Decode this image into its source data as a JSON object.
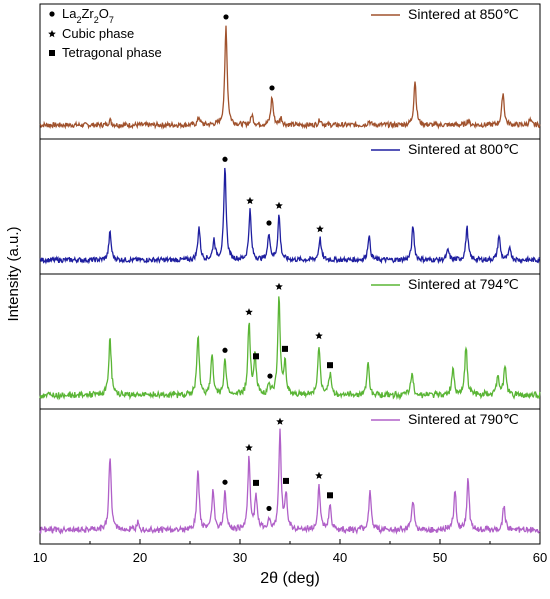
{
  "chart_data": {
    "type": "line",
    "xlabel": "2θ (deg)",
    "ylabel": "Intensity (a.u.)",
    "xlim": [
      10,
      60
    ],
    "xticks": [
      "10",
      "20",
      "30",
      "40",
      "50",
      "60"
    ],
    "legend": [
      {
        "marker": "circle",
        "label_main": "La",
        "sub1": "2",
        "mid": "Zr",
        "sub2": "2",
        "end": "O",
        "sub3": "7"
      },
      {
        "marker": "star",
        "label": "Cubic phase"
      },
      {
        "marker": "square",
        "label": "Tetragonal phase"
      }
    ],
    "series": [
      {
        "name": "Sintered at 850℃",
        "color": "#a0522d",
        "peaks": [
          [
            17.0,
            0.05
          ],
          [
            25.9,
            0.08
          ],
          [
            28.6,
            1.0
          ],
          [
            31.2,
            0.1
          ],
          [
            33.2,
            0.28
          ],
          [
            34.1,
            0.07
          ],
          [
            38.0,
            0.06
          ],
          [
            42.9,
            0.04
          ],
          [
            47.5,
            0.45
          ],
          [
            52.8,
            0.05
          ],
          [
            56.3,
            0.33
          ],
          [
            59.0,
            0.05
          ]
        ],
        "markers": [
          {
            "x": 28.6,
            "type": "circle"
          },
          {
            "x": 33.2,
            "type": "circle"
          }
        ]
      },
      {
        "name": "Sintered at 800℃",
        "color": "#1f1fa0",
        "peaks": [
          [
            17.0,
            0.28
          ],
          [
            25.9,
            0.33
          ],
          [
            27.4,
            0.2
          ],
          [
            28.5,
            0.92
          ],
          [
            31.0,
            0.5
          ],
          [
            32.9,
            0.27
          ],
          [
            33.9,
            0.45
          ],
          [
            38.0,
            0.22
          ],
          [
            42.9,
            0.25
          ],
          [
            47.3,
            0.34
          ],
          [
            50.8,
            0.1
          ],
          [
            52.7,
            0.33
          ],
          [
            55.9,
            0.25
          ],
          [
            57.0,
            0.12
          ]
        ],
        "markers": [
          {
            "x": 28.5,
            "type": "circle"
          },
          {
            "x": 31.0,
            "type": "star"
          },
          {
            "x": 32.9,
            "type": "circle"
          },
          {
            "x": 33.9,
            "type": "star"
          },
          {
            "x": 38.0,
            "type": "star"
          }
        ]
      },
      {
        "name": "Sintered at 794℃",
        "color": "#5ab535",
        "peaks": [
          [
            17.0,
            0.6
          ],
          [
            25.8,
            0.6
          ],
          [
            27.2,
            0.4
          ],
          [
            28.5,
            0.35
          ],
          [
            30.9,
            0.72
          ],
          [
            31.5,
            0.4
          ],
          [
            32.9,
            0.1
          ],
          [
            33.9,
            0.98
          ],
          [
            34.5,
            0.32
          ],
          [
            37.9,
            0.5
          ],
          [
            39.0,
            0.2
          ],
          [
            42.8,
            0.33
          ],
          [
            47.2,
            0.22
          ],
          [
            51.3,
            0.28
          ],
          [
            52.6,
            0.5
          ],
          [
            55.8,
            0.2
          ],
          [
            56.5,
            0.3
          ]
        ],
        "markers": [
          {
            "x": 28.5,
            "type": "circle"
          },
          {
            "x": 30.9,
            "type": "star"
          },
          {
            "x": 31.6,
            "type": "square"
          },
          {
            "x": 33.0,
            "type": "circle"
          },
          {
            "x": 33.9,
            "type": "star"
          },
          {
            "x": 34.5,
            "type": "square"
          },
          {
            "x": 37.9,
            "type": "star"
          },
          {
            "x": 39.0,
            "type": "square"
          }
        ]
      },
      {
        "name": "Sintered at 790℃",
        "color": "#b060c8",
        "peaks": [
          [
            17.0,
            0.75
          ],
          [
            19.8,
            0.1
          ],
          [
            25.8,
            0.6
          ],
          [
            27.3,
            0.42
          ],
          [
            28.5,
            0.38
          ],
          [
            30.9,
            0.72
          ],
          [
            31.6,
            0.35
          ],
          [
            32.9,
            0.1
          ],
          [
            34.0,
            0.98
          ],
          [
            34.6,
            0.35
          ],
          [
            37.9,
            0.45
          ],
          [
            39.0,
            0.25
          ],
          [
            43.0,
            0.4
          ],
          [
            47.3,
            0.3
          ],
          [
            51.5,
            0.4
          ],
          [
            52.8,
            0.5
          ],
          [
            56.4,
            0.25
          ]
        ],
        "markers": [
          {
            "x": 28.5,
            "type": "circle"
          },
          {
            "x": 30.9,
            "type": "star"
          },
          {
            "x": 31.6,
            "type": "square"
          },
          {
            "x": 32.9,
            "type": "circle"
          },
          {
            "x": 34.0,
            "type": "star"
          },
          {
            "x": 34.6,
            "type": "square"
          },
          {
            "x": 37.9,
            "type": "star"
          },
          {
            "x": 39.0,
            "type": "square"
          }
        ]
      }
    ]
  }
}
